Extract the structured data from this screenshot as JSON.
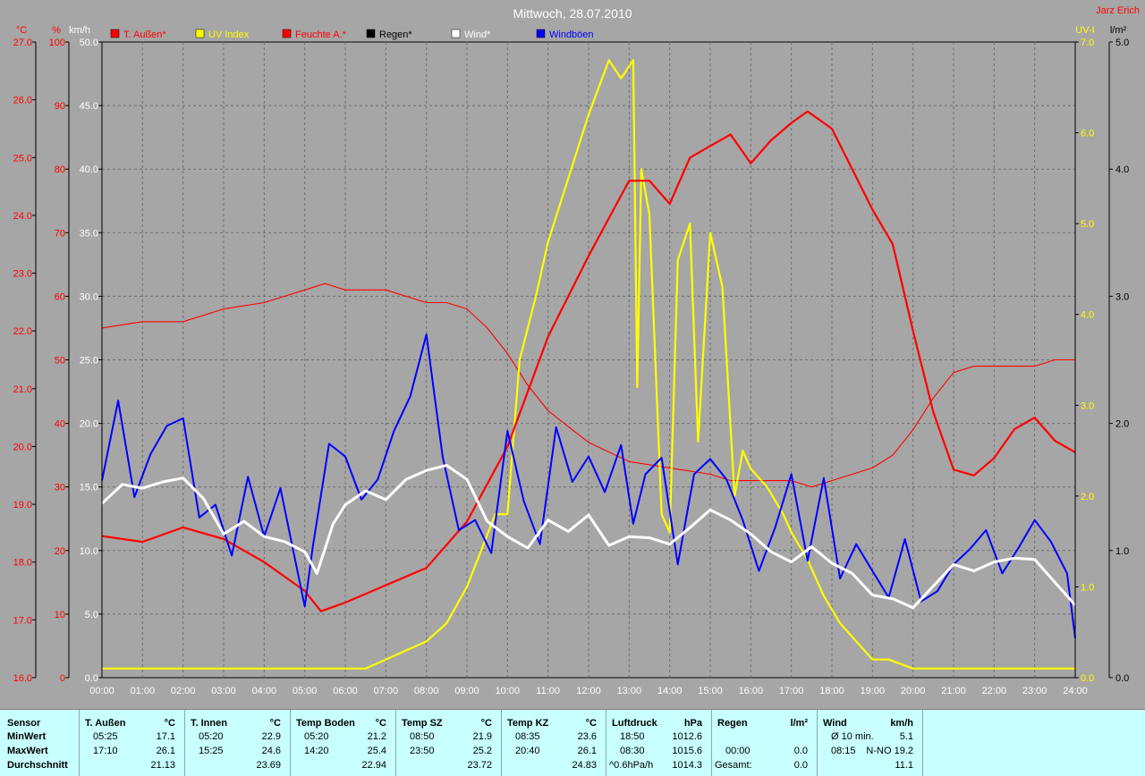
{
  "chart_data": {
    "type": "line",
    "title": "Mittwoch, 28.07.2010",
    "station": "Jarz Erich",
    "colors": {
      "bg": "#a6a6a6",
      "temp": "#ff0000",
      "uv": "#ffff00",
      "humidity": "#ff0000",
      "rain": "#000000",
      "wind": "#ffffff",
      "gusts": "#0000ff"
    },
    "legend": [
      {
        "label": "T. Außen*",
        "color": "#ff0000"
      },
      {
        "label": "UV Index",
        "color": "#ffff00"
      },
      {
        "label": "Feuchte A.*",
        "color": "#ff0000"
      },
      {
        "label": "Regen*",
        "color": "#000000"
      },
      {
        "label": "Wind*",
        "color": "#ffffff"
      },
      {
        "label": "Windböen",
        "color": "#0000ff"
      }
    ],
    "axes": {
      "temp": {
        "unit": "°C",
        "min": 16,
        "max": 27,
        "ticks": [
          "27.0",
          "26.0",
          "25.0",
          "24.0",
          "23.0",
          "22.0",
          "21.0",
          "20.0",
          "19.0",
          "18.0",
          "17.0",
          "16.0"
        ]
      },
      "humidity": {
        "unit": "%",
        "min": 0,
        "max": 100,
        "ticks": [
          "100",
          "90",
          "80",
          "70",
          "60",
          "50",
          "40",
          "30",
          "20",
          "10",
          "0"
        ]
      },
      "wind": {
        "unit": "km/h",
        "min": 0,
        "max": 50,
        "ticks": [
          "50.0",
          "45.0",
          "40.0",
          "35.0",
          "30.0",
          "25.0",
          "20.0",
          "15.0",
          "10.0",
          "5.0",
          "0.0"
        ]
      },
      "uv": {
        "unit": "UV-I",
        "min": 0,
        "max": 7,
        "ticks": [
          "7.0",
          "6.0",
          "5.0",
          "4.0",
          "3.0",
          "2.0",
          "1.0",
          "0.0"
        ]
      },
      "rain": {
        "unit": "l/m²",
        "min": 0,
        "max": 5,
        "ticks": [
          "5.0",
          "4.0",
          "3.0",
          "2.0",
          "1.0",
          "0.0"
        ]
      },
      "x": {
        "ticks": [
          "00:00",
          "01:00",
          "02:00",
          "03:00",
          "04:00",
          "05:00",
          "06:00",
          "07:00",
          "08:00",
          "09:00",
          "10:00",
          "11:00",
          "12:00",
          "13:00",
          "14:00",
          "15:00",
          "16:00",
          "17:00",
          "18:00",
          "19:00",
          "20:00",
          "21:00",
          "22:00",
          "23:00",
          "24:00"
        ]
      }
    },
    "series": [
      {
        "name": "T. Außen*",
        "axis": "temp",
        "x": [
          0,
          1,
          2,
          3,
          4,
          5,
          5.4,
          6,
          7,
          8,
          9,
          10,
          11,
          12,
          13,
          13.5,
          14,
          14.5,
          15,
          15.5,
          16,
          16.5,
          17,
          17.4,
          18,
          18.5,
          19,
          19.5,
          20,
          20.5,
          21,
          21.5,
          22,
          22.5,
          23,
          23.5,
          24
        ],
        "y": [
          18.45,
          18.35,
          18.6,
          18.4,
          18.0,
          17.5,
          17.15,
          17.3,
          17.6,
          17.9,
          18.7,
          20.0,
          21.9,
          23.3,
          24.6,
          24.6,
          24.2,
          25.0,
          25.2,
          25.4,
          24.9,
          25.3,
          25.6,
          25.8,
          25.5,
          24.8,
          24.1,
          23.5,
          22.0,
          20.6,
          19.6,
          19.5,
          19.8,
          20.3,
          20.5,
          20.1,
          19.9
        ]
      },
      {
        "name": "Feuchte A.*",
        "axis": "humidity",
        "x": [
          0,
          1,
          2,
          3,
          4,
          5,
          5.5,
          6,
          7,
          8,
          8.5,
          9,
          9.5,
          10,
          10.5,
          11,
          12,
          13,
          14,
          15,
          15.5,
          16,
          17,
          17.5,
          18,
          19,
          19.5,
          20,
          20.5,
          21,
          21.5,
          22,
          22.5,
          23,
          23.5,
          24
        ],
        "y": [
          55,
          56,
          56,
          58,
          59,
          61,
          62,
          61,
          61,
          59,
          59,
          58,
          55,
          51,
          46,
          42,
          37,
          34,
          33,
          32,
          31,
          31,
          31,
          30,
          31,
          33,
          35,
          39,
          44,
          48,
          49,
          49,
          49,
          49,
          50,
          50
        ]
      },
      {
        "name": "UV Index",
        "axis": "uv",
        "x": [
          0,
          6.5,
          7,
          8,
          8.5,
          9,
          9.7,
          10,
          10.3,
          10.7,
          11,
          11.5,
          12,
          12.5,
          12.8,
          13.1,
          13.2,
          13.3,
          13.5,
          13.8,
          14,
          14.2,
          14.5,
          14.7,
          15,
          15.3,
          15.6,
          15.8,
          16,
          16.4,
          16.8,
          17,
          17.4,
          17.8,
          18.2,
          18.6,
          19,
          19.4,
          20,
          24
        ],
        "y": [
          0.1,
          0.1,
          0.2,
          0.4,
          0.6,
          1.0,
          1.8,
          1.8,
          3.5,
          4.2,
          4.8,
          5.5,
          6.2,
          6.8,
          6.6,
          6.8,
          3.2,
          5.6,
          5.1,
          1.8,
          1.6,
          4.6,
          5.0,
          2.6,
          4.9,
          4.3,
          2.0,
          2.5,
          2.3,
          2.1,
          1.8,
          1.6,
          1.3,
          0.9,
          0.6,
          0.4,
          0.2,
          0.2,
          0.1,
          0.1
        ]
      },
      {
        "name": "Wind*",
        "axis": "wind",
        "x": [
          0,
          0.5,
          1,
          1.5,
          2,
          2.5,
          3,
          3.5,
          4,
          4.5,
          5,
          5.3,
          5.7,
          6,
          6.5,
          7,
          7.5,
          8,
          8.5,
          9,
          9.5,
          10,
          10.5,
          11,
          11.5,
          12,
          12.5,
          13,
          13.5,
          14,
          14.5,
          15,
          15.5,
          16,
          16.5,
          17,
          17.5,
          18,
          18.5,
          19,
          19.5,
          20,
          20.5,
          21,
          21.5,
          22,
          22.5,
          23,
          23.5,
          24
        ],
        "y": [
          13.7,
          15.2,
          14.9,
          15.4,
          15.7,
          14.1,
          11.3,
          12.3,
          11.1,
          10.7,
          9.9,
          8.2,
          12.1,
          13.6,
          14.7,
          14.0,
          15.6,
          16.3,
          16.7,
          15.6,
          12.3,
          11.1,
          10.2,
          12.4,
          11.5,
          12.8,
          10.4,
          11.1,
          11.0,
          10.5,
          11.8,
          13.2,
          12.4,
          11.3,
          9.9,
          9.1,
          10.3,
          9.0,
          8.2,
          6.5,
          6.2,
          5.5,
          7.2,
          8.9,
          8.4,
          9.1,
          9.4,
          9.3,
          7.5,
          5.7
        ]
      },
      {
        "name": "Windböen",
        "axis": "wind",
        "x": [
          0,
          0.4,
          0.8,
          1.2,
          1.6,
          2,
          2.4,
          2.8,
          3.2,
          3.6,
          4,
          4.4,
          4.8,
          5,
          5.2,
          5.6,
          6,
          6.4,
          6.8,
          7.2,
          7.6,
          8,
          8.4,
          8.8,
          9.2,
          9.6,
          10,
          10.4,
          10.8,
          11.2,
          11.6,
          12,
          12.4,
          12.8,
          13.1,
          13.4,
          13.8,
          14.2,
          14.6,
          15,
          15.4,
          15.8,
          16.2,
          16.6,
          17,
          17.4,
          17.8,
          18.2,
          18.6,
          19,
          19.4,
          19.8,
          20.2,
          20.6,
          21,
          21.4,
          21.8,
          22.2,
          22.6,
          23,
          23.4,
          23.8,
          24
        ],
        "y": [
          15.5,
          21.8,
          14.2,
          17.6,
          19.8,
          20.4,
          12.6,
          13.6,
          9.6,
          15.8,
          11.1,
          14.9,
          8.7,
          5.6,
          10.3,
          18.4,
          17.4,
          14.0,
          15.6,
          19.4,
          22.1,
          27.0,
          17.4,
          11.6,
          12.4,
          9.8,
          19.4,
          13.9,
          10.5,
          19.7,
          15.4,
          17.4,
          14.6,
          18.3,
          12.1,
          16.0,
          17.3,
          8.9,
          16.0,
          17.2,
          15.6,
          12.4,
          8.4,
          11.8,
          16.0,
          9.2,
          15.7,
          7.8,
          10.5,
          8.4,
          6.3,
          10.9,
          6.0,
          6.8,
          8.9,
          10.1,
          11.6,
          8.2,
          10.2,
          12.4,
          10.7,
          8.2,
          3.1
        ]
      }
    ]
  },
  "stats": {
    "labels": {
      "sensor": "Sensor",
      "min": "MinWert",
      "max": "MaxWert",
      "avg": "Durchschnitt"
    },
    "columns": [
      {
        "title": "T. Außen",
        "unit": "°C",
        "min_time": "05:25",
        "min_val": "17.1",
        "max_time": "17:10",
        "max_val": "26.1",
        "avg_time": "",
        "avg_val": "21.13"
      },
      {
        "title": "T. Innen",
        "unit": "°C",
        "min_time": "05:20",
        "min_val": "22.9",
        "max_time": "15:25",
        "max_val": "24.6",
        "avg_time": "",
        "avg_val": "23.69"
      },
      {
        "title": "Temp Boden",
        "unit": "°C",
        "min_time": "05:20",
        "min_val": "21.2",
        "max_time": "14:20",
        "max_val": "25.4",
        "avg_time": "",
        "avg_val": "22.94"
      },
      {
        "title": "Temp SZ",
        "unit": "°C",
        "min_time": "08:50",
        "min_val": "21.9",
        "max_time": "23:50",
        "max_val": "25.2",
        "avg_time": "",
        "avg_val": "23.72"
      },
      {
        "title": "Temp KZ",
        "unit": "°C",
        "min_time": "08:35",
        "min_val": "23.6",
        "max_time": "20:40",
        "max_val": "26.1",
        "avg_time": "",
        "avg_val": "24.83"
      },
      {
        "title": "Luftdruck",
        "unit": "hPa",
        "min_time": "18:50",
        "min_val": "1012.6",
        "max_time": "08:30",
        "max_val": "1015.6",
        "avg_time": "^0.6hPa/h",
        "avg_val": "1014.3"
      },
      {
        "title": "Regen",
        "unit": "l/m²",
        "min_time": "",
        "min_val": "",
        "max_time": "00:00",
        "max_val": "0.0",
        "avg_time": "Gesamt:",
        "avg_val": "0.0",
        "extra_val": "0.0"
      },
      {
        "title": "Wind",
        "unit": "km/h",
        "min_time": "Ø 10 min.",
        "min_val": "5.1",
        "max_time": "08:15",
        "max_val": "N-NO 19.2",
        "avg_time": "",
        "avg_val": "11.1"
      }
    ]
  }
}
